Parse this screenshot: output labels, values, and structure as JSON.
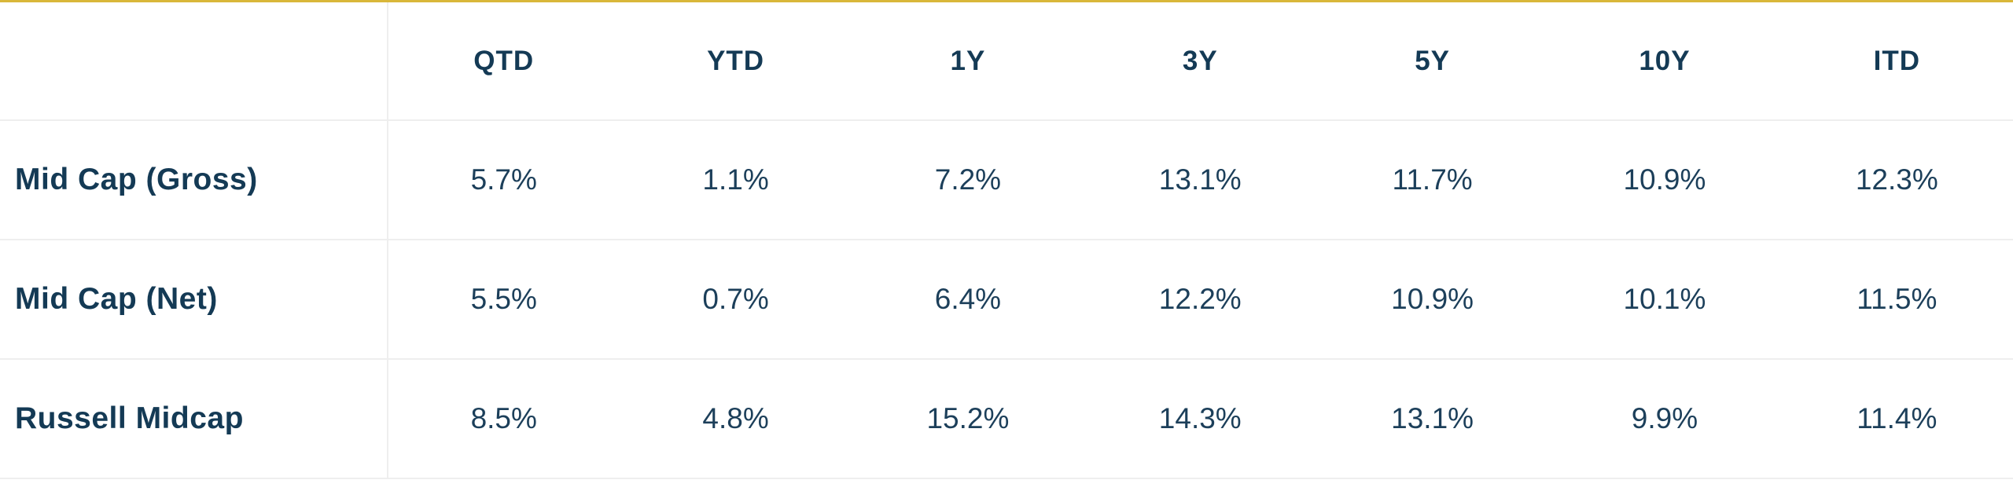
{
  "table": {
    "columns": [
      "QTD",
      "YTD",
      "1Y",
      "3Y",
      "5Y",
      "10Y",
      "ITD"
    ],
    "rows": [
      {
        "label": "Mid Cap (Gross)",
        "values": [
          "5.7%",
          "1.1%",
          "7.2%",
          "13.1%",
          "11.7%",
          "10.9%",
          "12.3%"
        ]
      },
      {
        "label": "Mid Cap (Net)",
        "values": [
          "5.5%",
          "0.7%",
          "6.4%",
          "12.2%",
          "10.9%",
          "10.1%",
          "11.5%"
        ]
      },
      {
        "label": "Russell Midcap",
        "values": [
          "8.5%",
          "4.8%",
          "15.2%",
          "14.3%",
          "13.1%",
          "9.9%",
          "11.4%"
        ]
      }
    ]
  },
  "colors": {
    "accent_rule": "#d9b73a",
    "text": "#143a55",
    "grid": "#eeeeee"
  }
}
